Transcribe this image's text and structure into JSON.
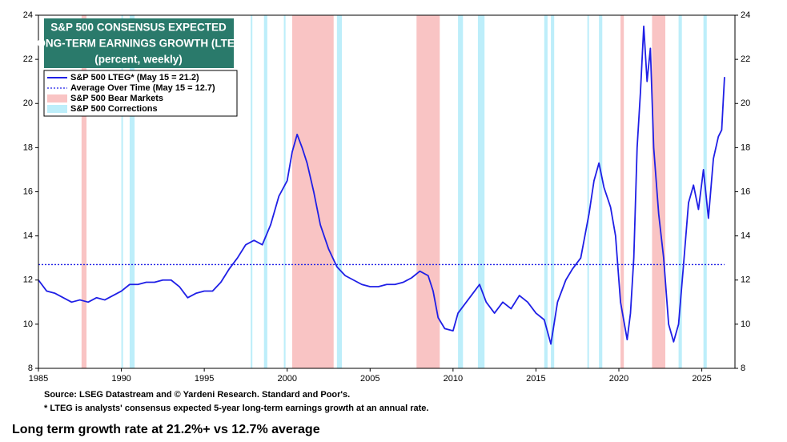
{
  "chart_data": {
    "type": "line",
    "title": [
      "S&P 500 CONSENSUS EXPECTED",
      "LONG-TERM EARNINGS GROWTH (LTEG)"
    ],
    "subtitle": "(percent, weekly)",
    "xlim": [
      1985,
      2027
    ],
    "xticks": [
      1985,
      1990,
      1995,
      2000,
      2005,
      2010,
      2015,
      2020,
      2025
    ],
    "ylim": [
      8,
      24
    ],
    "yticks": [
      8,
      10,
      12,
      14,
      16,
      18,
      20,
      22,
      24
    ],
    "series": [
      {
        "name": "S&P 500 LTEG* (May 15 = 21.2)",
        "color": "#1f1fe6",
        "x": [
          1985,
          1985.5,
          1986,
          1986.5,
          1987,
          1987.5,
          1988,
          1988.5,
          1989,
          1989.5,
          1990,
          1990.5,
          1991,
          1991.5,
          1992,
          1992.5,
          1993,
          1993.5,
          1994,
          1994.5,
          1995,
          1995.5,
          1996,
          1996.5,
          1997,
          1997.5,
          1998,
          1998.5,
          1999,
          1999.5,
          2000,
          2000.3,
          2000.6,
          2000.9,
          2001.2,
          2001.6,
          2002,
          2002.5,
          2003,
          2003.5,
          2004,
          2004.5,
          2005,
          2005.5,
          2006,
          2006.5,
          2007,
          2007.5,
          2008,
          2008.5,
          2008.8,
          2009.1,
          2009.5,
          2010,
          2010.3,
          2010.8,
          2011.2,
          2011.6,
          2012,
          2012.5,
          2013,
          2013.5,
          2014,
          2014.5,
          2015,
          2015.5,
          2015.9,
          2016.3,
          2016.8,
          2017.2,
          2017.7,
          2018.2,
          2018.5,
          2018.8,
          2019.1,
          2019.5,
          2019.8,
          2020.1,
          2020.5,
          2020.7,
          2020.9,
          2021.1,
          2021.3,
          2021.5,
          2021.7,
          2021.9,
          2022.1,
          2022.4,
          2022.7,
          2023,
          2023.3,
          2023.6,
          2023.9,
          2024.2,
          2024.5,
          2024.8,
          2025.1,
          2025.4,
          2025.7,
          2026,
          2026.2,
          2026.37
        ],
        "values": [
          12.0,
          11.5,
          11.4,
          11.2,
          11.0,
          11.1,
          11.0,
          11.2,
          11.1,
          11.3,
          11.5,
          11.8,
          11.8,
          11.9,
          11.9,
          12.0,
          12.0,
          11.7,
          11.2,
          11.4,
          11.5,
          11.5,
          11.9,
          12.5,
          13.0,
          13.6,
          13.8,
          13.6,
          14.5,
          15.8,
          16.5,
          17.8,
          18.6,
          18.0,
          17.3,
          16.0,
          14.5,
          13.4,
          12.6,
          12.2,
          12.0,
          11.8,
          11.7,
          11.7,
          11.8,
          11.8,
          11.9,
          12.1,
          12.4,
          12.2,
          11.5,
          10.3,
          9.8,
          9.7,
          10.5,
          11.0,
          11.4,
          11.8,
          11.0,
          10.5,
          11.0,
          10.7,
          11.3,
          11.0,
          10.5,
          10.2,
          9.1,
          11.0,
          12.0,
          12.5,
          13.0,
          15.0,
          16.5,
          17.3,
          16.2,
          15.3,
          14.0,
          11.0,
          9.3,
          10.5,
          13.0,
          18.0,
          20.5,
          23.5,
          21.0,
          22.5,
          18.0,
          15.0,
          13.0,
          10.0,
          9.2,
          10.0,
          12.7,
          15.5,
          16.3,
          15.2,
          17.0,
          14.8,
          17.5,
          18.5,
          18.8,
          21.2
        ]
      }
    ],
    "average": {
      "name": "Average Over Time (May 15 = 12.7)",
      "color": "#1f1fe6",
      "value": 12.7
    },
    "bear_markets": {
      "name": "S&P 500 Bear Markets",
      "color": "#f9c4c4",
      "ranges": [
        [
          1987.6,
          1987.9
        ],
        [
          2000.3,
          2002.8
        ],
        [
          2007.8,
          2009.2
        ],
        [
          2020.1,
          2020.3
        ],
        [
          2022.0,
          2022.8
        ]
      ]
    },
    "corrections": {
      "name": "S&P 500 Corrections",
      "color": "#bdeefa",
      "ranges": [
        [
          1990.0,
          1990.1
        ],
        [
          1990.5,
          1990.8
        ],
        [
          1997.8,
          1997.9
        ],
        [
          1998.6,
          1998.8
        ],
        [
          1999.8,
          1999.9
        ],
        [
          2003.0,
          2003.3
        ],
        [
          2010.3,
          2010.6
        ],
        [
          2011.5,
          2011.9
        ],
        [
          2015.5,
          2015.7
        ],
        [
          2015.9,
          2016.1
        ],
        [
          2018.1,
          2018.2
        ],
        [
          2018.8,
          2019.0
        ],
        [
          2023.6,
          2023.8
        ],
        [
          2025.1,
          2025.3
        ]
      ]
    },
    "notes": [
      "Source: LSEG Datastream and © Yardeni Research. Standard and Poor's.",
      "* LTEG is analysts' consensus expected 5-year long-term earnings growth at an annual rate."
    ]
  },
  "caption": "Long term growth rate at 21.2%+ vs 12.7% average"
}
